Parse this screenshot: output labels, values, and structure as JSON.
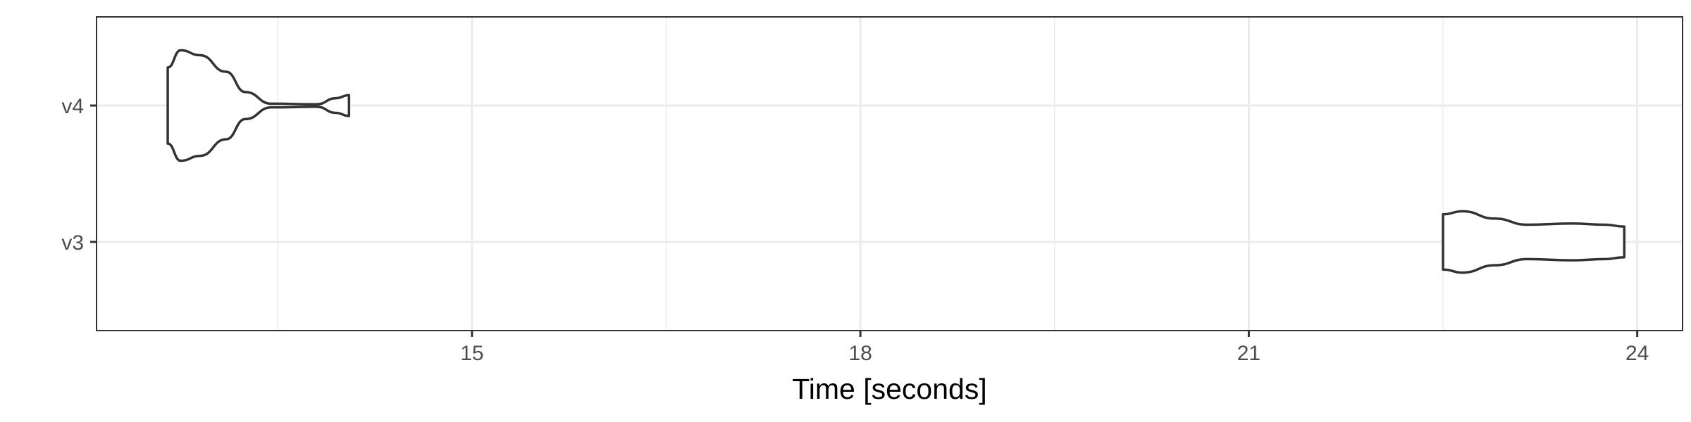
{
  "chart_data": {
    "type": "violin",
    "orientation": "horizontal",
    "xlabel": "Time [seconds]",
    "ylabel": "",
    "xlim": [
      12.1,
      24.35
    ],
    "x_ticks": [
      15,
      18,
      21,
      24
    ],
    "x_minor_ticks": [
      13.5,
      16.5,
      19.5,
      22.5
    ],
    "categories": [
      "v3",
      "v4"
    ],
    "grid": true,
    "series": [
      {
        "name": "v4",
        "min": 12.65,
        "max": 14.05,
        "profile": [
          {
            "x": 12.65,
            "w": 0.62
          },
          {
            "x": 12.75,
            "w": 0.9
          },
          {
            "x": 12.9,
            "w": 0.82
          },
          {
            "x": 13.1,
            "w": 0.55
          },
          {
            "x": 13.25,
            "w": 0.22
          },
          {
            "x": 13.45,
            "w": 0.03
          },
          {
            "x": 13.8,
            "w": 0.02
          },
          {
            "x": 13.95,
            "w": 0.12
          },
          {
            "x": 14.05,
            "w": 0.17
          }
        ]
      },
      {
        "name": "v3",
        "min": 22.5,
        "max": 23.9,
        "profile": [
          {
            "x": 22.5,
            "w": 0.45
          },
          {
            "x": 22.65,
            "w": 0.5
          },
          {
            "x": 22.9,
            "w": 0.38
          },
          {
            "x": 23.15,
            "w": 0.28
          },
          {
            "x": 23.5,
            "w": 0.3
          },
          {
            "x": 23.75,
            "w": 0.28
          },
          {
            "x": 23.9,
            "w": 0.25
          }
        ]
      }
    ]
  }
}
